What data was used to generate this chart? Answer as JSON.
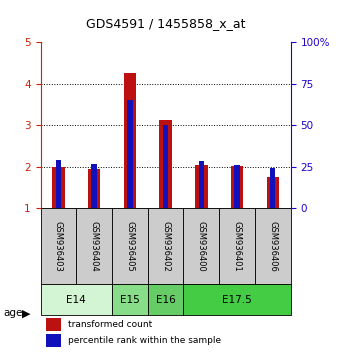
{
  "title": "GDS4591 / 1455858_x_at",
  "samples": [
    "GSM936403",
    "GSM936404",
    "GSM936405",
    "GSM936402",
    "GSM936400",
    "GSM936401",
    "GSM936406"
  ],
  "red_values": [
    2.0,
    1.95,
    4.27,
    3.12,
    2.05,
    2.02,
    1.75
  ],
  "blue_values": [
    2.17,
    2.08,
    3.62,
    3.0,
    2.15,
    2.05,
    1.97
  ],
  "ylim_left": [
    1,
    5
  ],
  "ylim_right": [
    0,
    100
  ],
  "left_ticks": [
    1,
    2,
    3,
    4,
    5
  ],
  "right_ticks": [
    0,
    25,
    50,
    75,
    100
  ],
  "age_groups": [
    {
      "label": "E14",
      "start": 0,
      "end": 2,
      "color": "#d4f5d4"
    },
    {
      "label": "E15",
      "start": 2,
      "end": 3,
      "color": "#88dd88"
    },
    {
      "label": "E16",
      "start": 3,
      "end": 4,
      "color": "#66cc66"
    },
    {
      "label": "E17.5",
      "start": 4,
      "end": 7,
      "color": "#44cc44"
    }
  ],
  "bar_color_red": "#bb1111",
  "bar_color_blue": "#1111bb",
  "red_bar_width": 0.35,
  "blue_bar_width": 0.15,
  "sample_box_color": "#cccccc",
  "legend_label_red": "transformed count",
  "legend_label_blue": "percentile rank within the sample",
  "left_axis_color": "#cc2200",
  "right_axis_color": "#2200cc",
  "grid_ticks": [
    2,
    3,
    4
  ]
}
